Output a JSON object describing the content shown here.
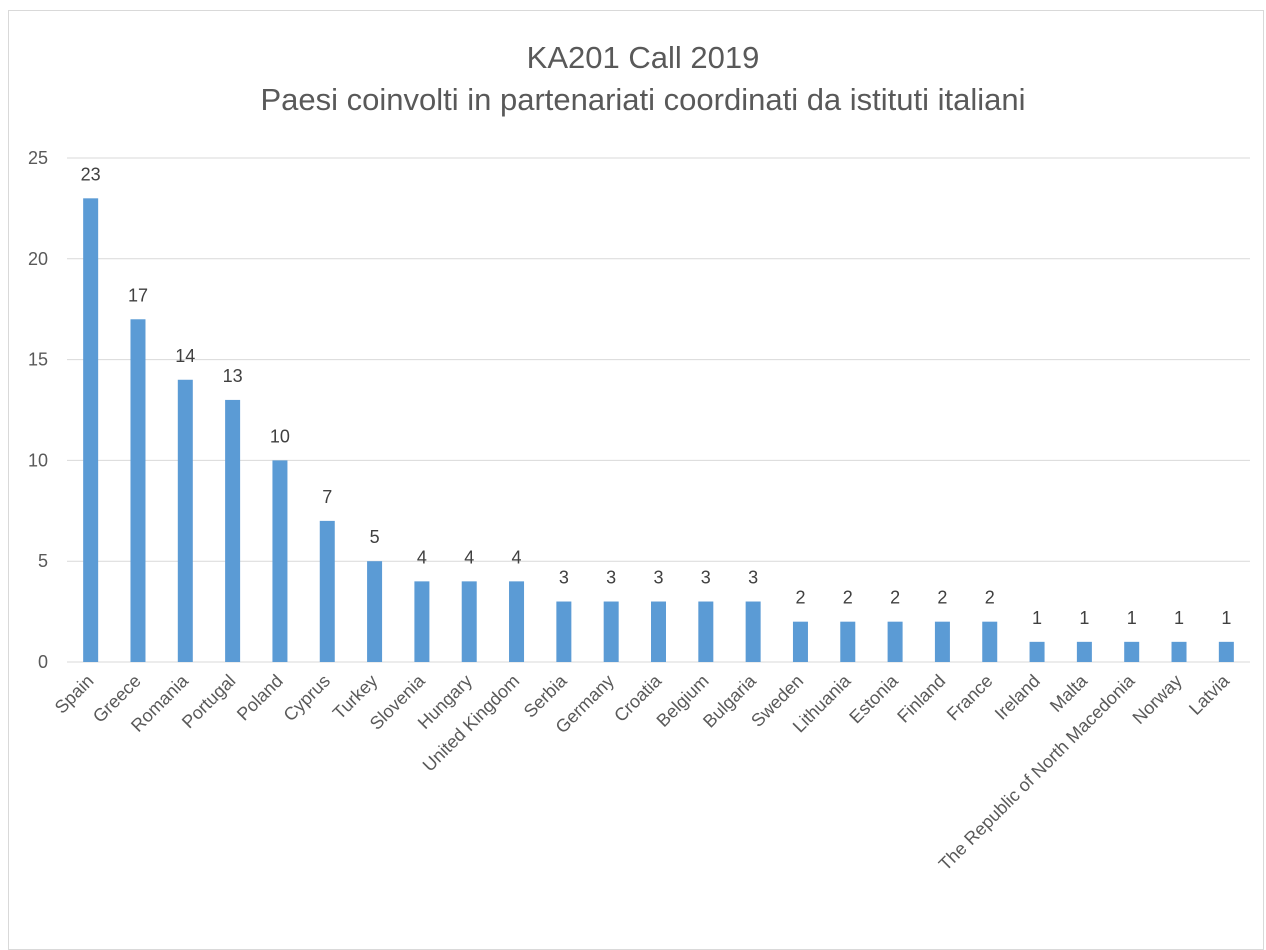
{
  "chart_data": {
    "type": "bar",
    "title": "KA201 Call 2019",
    "subtitle": "Paesi coinvolti in partenariati coordinati da istituti italiani",
    "categories": [
      "Spain",
      "Greece",
      "Romania",
      "Portugal",
      "Poland",
      "Cyprus",
      "Turkey",
      "Slovenia",
      "Hungary",
      "United Kingdom",
      "Serbia",
      "Germany",
      "Croatia",
      "Belgium",
      "Bulgaria",
      "Sweden",
      "Lithuania",
      "Estonia",
      "Finland",
      "France",
      "Ireland",
      "Malta",
      "The Republic of North Macedonia",
      "Norway",
      "Latvia"
    ],
    "values": [
      23,
      17,
      14,
      13,
      10,
      7,
      5,
      4,
      4,
      4,
      3,
      3,
      3,
      3,
      3,
      2,
      2,
      2,
      2,
      2,
      1,
      1,
      1,
      1,
      1
    ],
    "ylim": [
      0,
      25
    ],
    "yticks": [
      0,
      5,
      10,
      15,
      20,
      25
    ],
    "grid": true,
    "legend": "none",
    "data_labels": true,
    "bar_color": "#5b9bd5",
    "xlabel": "",
    "ylabel": ""
  }
}
